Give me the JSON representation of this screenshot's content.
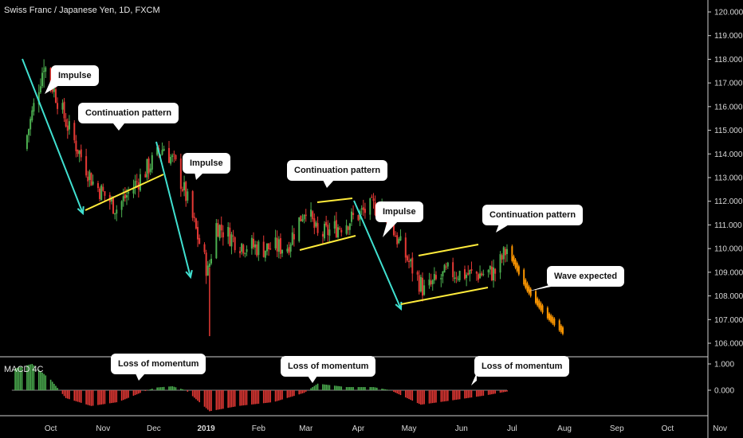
{
  "chart_title": "Swiss Franc / Japanese Yen, 1D, FXCM",
  "indicator_label": "MACD 4C",
  "annotations": {
    "impulse_1": "Impulse",
    "continuation_1": "Continuation pattern",
    "impulse_2": "Impulse",
    "continuation_2": "Continuation pattern",
    "impulse_3": "Impulse",
    "continuation_3": "Continuation pattern",
    "wave_expected": "Wave expected",
    "momentum_1": "Loss of momentum",
    "momentum_2": "Loss of momentum",
    "momentum_3": "Loss of momentum"
  },
  "colors": {
    "up": "#4caf50",
    "down": "#e53935",
    "projection": "#ff9800",
    "impulse_arrow": "#40e0d0",
    "channel": "#ffeb3b",
    "macd_up": "#4caf50",
    "macd_down": "#e53935"
  },
  "chart_data": {
    "type": "candlestick",
    "y_axis_ticks": [
      "120.000",
      "119.000",
      "118.000",
      "117.000",
      "116.000",
      "115.000",
      "114.000",
      "113.000",
      "112.000",
      "111.000",
      "110.000",
      "109.000",
      "108.000",
      "107.000",
      "106.000"
    ],
    "ylim": [
      106,
      120
    ],
    "x_axis_ticks": [
      "Oct",
      "Nov",
      "Dec",
      "2019",
      "Feb",
      "Mar",
      "Apr",
      "May",
      "Jun",
      "Jul",
      "Aug",
      "Sep",
      "Oct",
      "Nov"
    ],
    "close_path": [
      {
        "date": "2018-09-15",
        "close": 114.2
      },
      {
        "date": "2018-09-27",
        "close": 117.8
      },
      {
        "date": "2018-10-12",
        "close": 115.0
      },
      {
        "date": "2018-10-26",
        "close": 112.8
      },
      {
        "date": "2018-11-09",
        "close": 111.7
      },
      {
        "date": "2018-11-23",
        "close": 113.0
      },
      {
        "date": "2018-12-07",
        "close": 114.3
      },
      {
        "date": "2018-12-14",
        "close": 113.5
      },
      {
        "date": "2018-12-21",
        "close": 112.0
      },
      {
        "date": "2019-01-02",
        "close": 109.0
      },
      {
        "date": "2019-01-07",
        "close": 111.0
      },
      {
        "date": "2019-01-21",
        "close": 110.2
      },
      {
        "date": "2019-02-04",
        "close": 110.0
      },
      {
        "date": "2019-02-18",
        "close": 110.1
      },
      {
        "date": "2019-03-01",
        "close": 111.8
      },
      {
        "date": "2019-03-08",
        "close": 110.5
      },
      {
        "date": "2019-03-22",
        "close": 111.0
      },
      {
        "date": "2019-04-05",
        "close": 111.6
      },
      {
        "date": "2019-04-15",
        "close": 111.9
      },
      {
        "date": "2019-04-26",
        "close": 110.1
      },
      {
        "date": "2019-05-10",
        "close": 108.2
      },
      {
        "date": "2019-05-24",
        "close": 109.0
      },
      {
        "date": "2019-06-07",
        "close": 108.9
      },
      {
        "date": "2019-06-21",
        "close": 109.0
      },
      {
        "date": "2019-06-28",
        "close": 110.0
      }
    ],
    "projection_path": [
      {
        "date": "2019-06-28",
        "close": 110.0
      },
      {
        "date": "2019-07-10",
        "close": 108.3
      },
      {
        "date": "2019-07-20",
        "close": 107.3
      },
      {
        "date": "2019-07-31",
        "close": 106.5
      }
    ],
    "extreme_wicks": [
      {
        "date": "2018-09-27",
        "high": 118.0
      },
      {
        "date": "2019-01-03",
        "low": 106.3
      }
    ],
    "macd": {
      "y_axis_ticks": [
        "1.000",
        "0.000"
      ],
      "ylim": [
        -1.0,
        1.2
      ],
      "histogram_path": [
        {
          "date": "2018-09-08",
          "value": 0.8
        },
        {
          "date": "2018-09-20",
          "value": 1.0
        },
        {
          "date": "2018-10-01",
          "value": 0.4
        },
        {
          "date": "2018-10-10",
          "value": -0.3
        },
        {
          "date": "2018-10-25",
          "value": -0.6
        },
        {
          "date": "2018-11-10",
          "value": -0.45
        },
        {
          "date": "2018-11-25",
          "value": -0.05
        },
        {
          "date": "2018-12-02",
          "value": 0.1
        },
        {
          "date": "2018-12-12",
          "value": 0.15
        },
        {
          "date": "2018-12-20",
          "value": 0.0
        },
        {
          "date": "2019-01-03",
          "value": -0.8
        },
        {
          "date": "2019-01-20",
          "value": -0.6
        },
        {
          "date": "2019-02-10",
          "value": -0.45
        },
        {
          "date": "2019-02-28",
          "value": -0.1
        },
        {
          "date": "2019-03-08",
          "value": 0.25
        },
        {
          "date": "2019-03-25",
          "value": 0.12
        },
        {
          "date": "2019-04-10",
          "value": 0.12
        },
        {
          "date": "2019-04-20",
          "value": 0.0
        },
        {
          "date": "2019-05-08",
          "value": -0.55
        },
        {
          "date": "2019-05-25",
          "value": -0.4
        },
        {
          "date": "2019-06-15",
          "value": -0.2
        },
        {
          "date": "2019-06-28",
          "value": -0.05
        }
      ]
    }
  }
}
